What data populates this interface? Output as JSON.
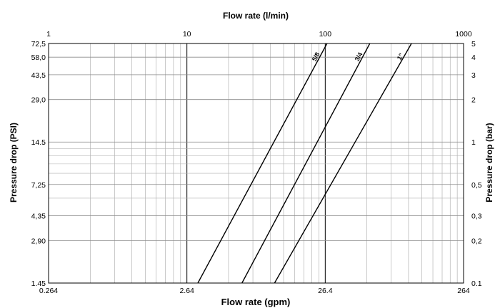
{
  "chart_data": {
    "type": "line",
    "title": "",
    "x_axis_top": {
      "label": "Flow rate (l/min)",
      "scale": "log",
      "range": [
        1,
        1000
      ],
      "ticks": [
        {
          "value": 1,
          "label": "1"
        },
        {
          "value": 10,
          "label": "10"
        },
        {
          "value": 100,
          "label": "100"
        },
        {
          "value": 1000,
          "label": "1000"
        }
      ]
    },
    "x_axis_bottom": {
      "label": "Flow rate (gpm)",
      "scale": "log",
      "ticks": [
        {
          "lpm": 1,
          "label": "0.264"
        },
        {
          "lpm": 10,
          "label": "2.64"
        },
        {
          "lpm": 100,
          "label": "26.4"
        },
        {
          "lpm": 1000,
          "label": "264"
        }
      ]
    },
    "y_axis_left": {
      "label": "Pressure drop (PSI)",
      "ticks": [
        {
          "bar": 0.1,
          "label": "1.45"
        },
        {
          "bar": 0.2,
          "label": "2,90"
        },
        {
          "bar": 0.3,
          "label": "4,35"
        },
        {
          "bar": 0.5,
          "label": "7,25"
        },
        {
          "bar": 1,
          "label": "14.5"
        },
        {
          "bar": 2,
          "label": "29,0"
        },
        {
          "bar": 3,
          "label": "43,5"
        },
        {
          "bar": 4,
          "label": "58,0"
        },
        {
          "bar": 5,
          "label": "72,5"
        }
      ]
    },
    "y_axis_right": {
      "label": "Pressure drop (bar)",
      "scale": "log",
      "range": [
        0.1,
        5
      ],
      "ticks": [
        {
          "value": 0.1,
          "label": "0.1"
        },
        {
          "value": 0.2,
          "label": "0,2"
        },
        {
          "value": 0.3,
          "label": "0,3"
        },
        {
          "value": 0.5,
          "label": "0,5"
        },
        {
          "value": 1,
          "label": "1"
        },
        {
          "value": 2,
          "label": "2"
        },
        {
          "value": 3,
          "label": "3"
        },
        {
          "value": 4,
          "label": "4"
        },
        {
          "value": 5,
          "label": "5"
        }
      ]
    },
    "grid": true,
    "series": [
      {
        "name": "5/8",
        "x": [
          12,
          103
        ],
        "y": [
          0.1,
          5
        ]
      },
      {
        "name": "3/4",
        "x": [
          25,
          210
        ],
        "y": [
          0.1,
          5
        ]
      },
      {
        "name": "1\"",
        "x": [
          43,
          420
        ],
        "y": [
          0.1,
          5
        ]
      }
    ]
  }
}
